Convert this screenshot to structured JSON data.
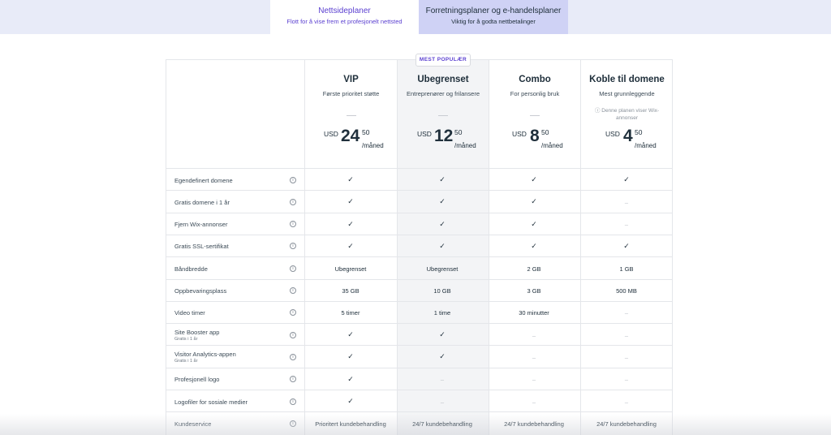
{
  "tabs": [
    {
      "title": "Nettsideplaner",
      "subtitle": "Flott for å vise frem et profesjonelt nettsted"
    },
    {
      "title": "Forretningsplaner og e-handelsplaner",
      "subtitle": "Viktig for å godta nettbetalinger"
    }
  ],
  "badge": "MEST POPULÆR",
  "plans": [
    {
      "name": "VIP",
      "desc": "Første prioritet støtte",
      "currency": "USD",
      "whole": "24",
      "cents": "50",
      "per": "/måned"
    },
    {
      "name": "Ubegrenset",
      "desc": "Entreprenører og frilansere",
      "currency": "USD",
      "whole": "12",
      "cents": "50",
      "per": "/måned"
    },
    {
      "name": "Combo",
      "desc": "For personlig bruk",
      "currency": "USD",
      "whole": "8",
      "cents": "50",
      "per": "/måned"
    },
    {
      "name": "Koble til domene",
      "desc": "Mest grunnleggende",
      "note": "ⓘ Denne planen viser Wix-annonser",
      "currency": "USD",
      "whole": "4",
      "cents": "50",
      "per": "/måned"
    }
  ],
  "info_glyph": "i",
  "features": [
    {
      "label": "Egendefinert domene",
      "sub": "",
      "values": [
        "✓",
        "✓",
        "✓",
        "✓"
      ]
    },
    {
      "label": "Gratis domene i 1 år",
      "sub": "",
      "values": [
        "✓",
        "✓",
        "✓",
        "–"
      ]
    },
    {
      "label": "Fjern Wix-annonser",
      "sub": "",
      "values": [
        "✓",
        "✓",
        "✓",
        "–"
      ]
    },
    {
      "label": "Gratis SSL-sertifikat",
      "sub": "",
      "values": [
        "✓",
        "✓",
        "✓",
        "✓"
      ]
    },
    {
      "label": "Båndbredde",
      "sub": "",
      "values": [
        "Ubegrenset",
        "Ubegrenset",
        "2 GB",
        "1 GB"
      ]
    },
    {
      "label": "Oppbevaringsplass",
      "sub": "",
      "values": [
        "35 GB",
        "10 GB",
        "3 GB",
        "500 MB"
      ]
    },
    {
      "label": "Video timer",
      "sub": "",
      "values": [
        "5 timer",
        "1 time",
        "30 minutter",
        "–"
      ]
    },
    {
      "label": "Site Booster app",
      "sub": "Gratis i 1 år",
      "values": [
        "✓",
        "✓",
        "–",
        "–"
      ]
    },
    {
      "label": "Visitor Analytics-appen",
      "sub": "Gratis i 1 år",
      "values": [
        "✓",
        "✓",
        "–",
        "–"
      ]
    },
    {
      "label": "Profesjonell logo",
      "sub": "",
      "values": [
        "✓",
        "–",
        "–",
        "–"
      ]
    },
    {
      "label": "Logofiler for sosiale medier",
      "sub": "",
      "values": [
        "✓",
        "–",
        "–",
        "–"
      ]
    },
    {
      "label": "Kundeservice",
      "sub": "",
      "values": [
        "Prioritert kundebehandling",
        "24/7 kundebehandling",
        "24/7 kundebehandling",
        "24/7 kundebehandling"
      ]
    }
  ]
}
